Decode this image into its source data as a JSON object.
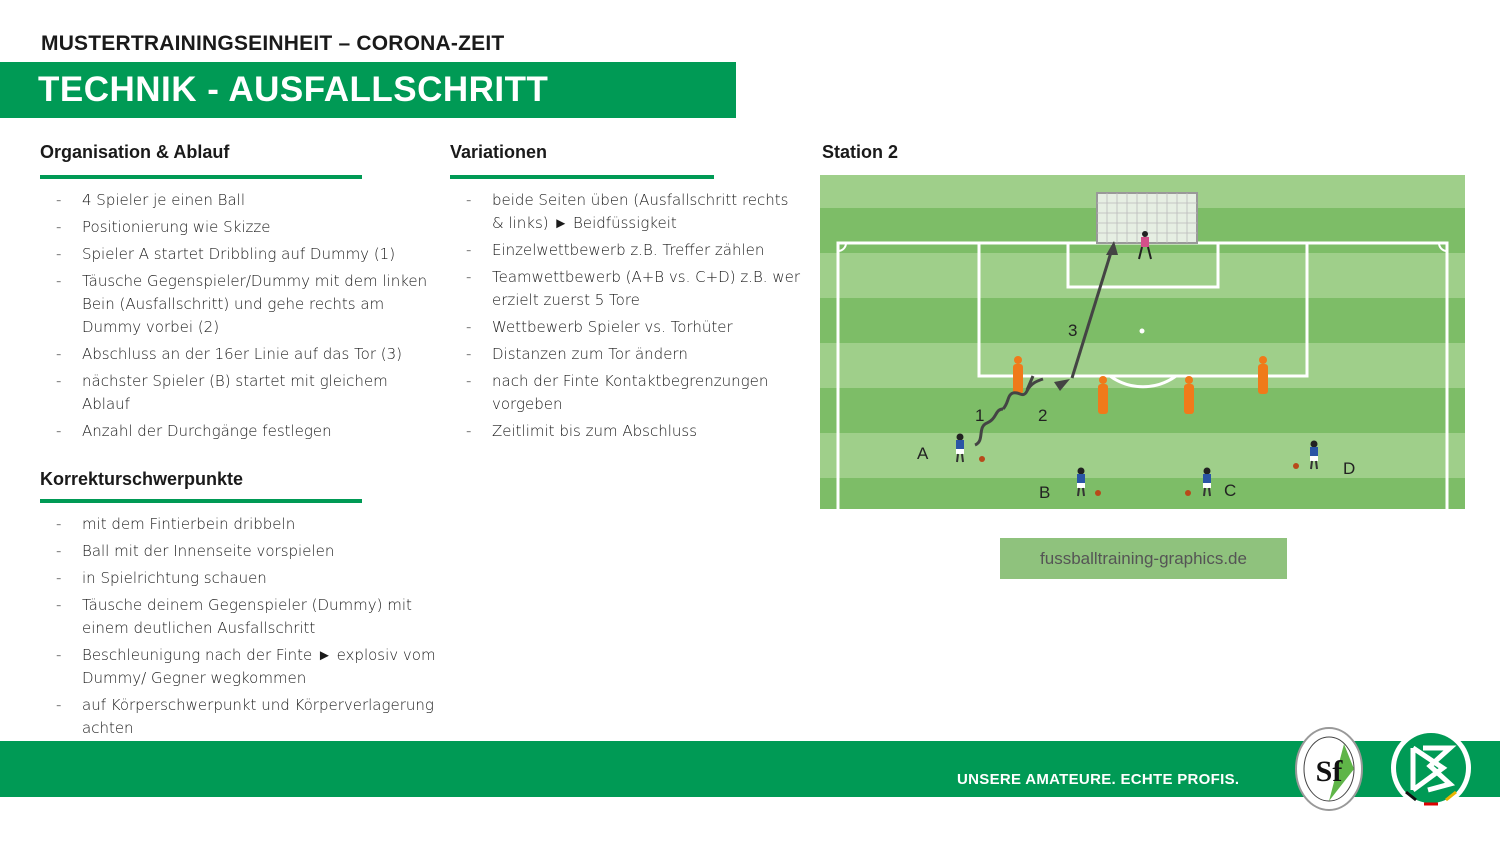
{
  "header": {
    "subtitle": "MUSTERTRAININGSEINHEIT – CORONA-ZEIT",
    "title": "TECHNIK - AUSFALLSCHRITT"
  },
  "organisation": {
    "heading": "Organisation & Ablauf",
    "items": [
      "4 Spieler je einen Ball",
      "Positionierung wie Skizze",
      "Spieler A startet Dribbling auf Dummy (1)",
      "Täusche Gegenspieler/Dummy mit dem linken Bein (Ausfallschritt) und gehe rechts am Dummy vorbei (2)",
      "Abschluss an der 16er Linie auf das Tor (3)",
      "nächster Spieler (B) startet mit gleichem Ablauf",
      "Anzahl der Durchgänge festlegen"
    ]
  },
  "korrektur": {
    "heading": "Korrekturschwerpunkte",
    "items": [
      "mit dem Fintierbein dribbeln",
      "Ball mit der Innenseite vorspielen",
      "in Spielrichtung schauen",
      "Täusche deinem Gegenspieler (Dummy) mit einem deutlichen Ausfallschritt",
      "Beschleunigung nach der Finte ► explosiv vom Dummy/ Gegner wegkommen",
      "auf Körperschwerpunkt und Körperverlagerung achten"
    ]
  },
  "variationen": {
    "heading": "Variationen",
    "items": [
      "beide Seiten üben (Ausfallschritt rechts & links) ► Beidfüssigkeit",
      "Einzelwettbewerb z.B. Treffer zählen",
      "Teamwettbewerb (A+B vs. C+D) z.B. wer erzielt zuerst 5 Tore",
      "Wettbewerb Spieler vs. Torhüter",
      "Distanzen zum Tor ändern",
      "nach der Finte Kontaktbegrenzungen vorgeben",
      "Zeitlimit bis zum Abschluss"
    ]
  },
  "station": {
    "heading": "Station 2",
    "players": [
      "A",
      "B",
      "C",
      "D"
    ],
    "steps": [
      "1",
      "2",
      "3"
    ],
    "watermark": "fussballtraining-graphics.de"
  },
  "footer": {
    "slogan": "UNSERE AMATEURE. ECHTE PROFIS.",
    "logos": [
      "SFV",
      "DFB"
    ]
  },
  "colors": {
    "brand_green": "#009a55",
    "pitch_light": "#9fcf8a",
    "pitch_dark": "#7dbd67",
    "dummy": "#f07a1a",
    "player": "#2a55a5"
  }
}
